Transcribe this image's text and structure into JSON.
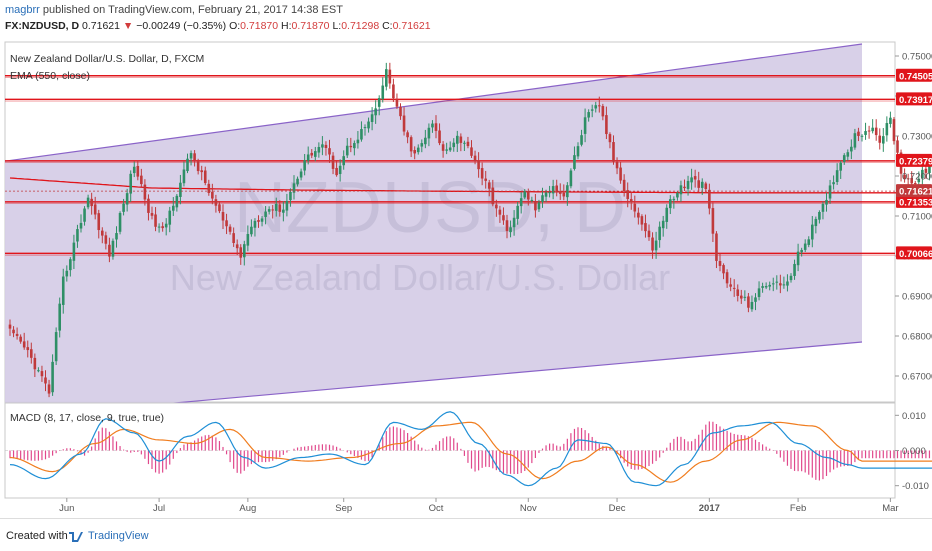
{
  "header": {
    "author": "magbrr",
    "published_text": "published on TradingView.com, February 21, 2017 14:38 EST",
    "symbol": "FX:NZDUSD, D",
    "last": "0.71621",
    "change": "−0.00249 (−0.35%)",
    "o_label": "O:",
    "o_value": "0.71870",
    "h_label": "H:",
    "h_value": "0.71870",
    "l_label": "L:",
    "l_value": "0.71298",
    "c_label": "C:",
    "c_value": "0.71621"
  },
  "footer": {
    "created_with": "Created with",
    "brand": "TradingView"
  },
  "colors": {
    "up": "#2e8f66",
    "down": "#c0393b",
    "channel_fill": "#d4cbe6",
    "channel_line": "#8a63c8",
    "hline": "#e0151b",
    "ema": "#e0151b",
    "macd": "#1f8fd6",
    "signal": "#f07d1f",
    "hist": "#e0498c"
  },
  "chart_data": [
    {
      "type": "candlestick",
      "title": "New Zealand Dollar/U.S. Dollar, D, FXCM",
      "indicator": "EMA (550, close)",
      "watermark_symbol": "NZDUSD, D",
      "watermark_name": "New Zealand Dollar/U.S. Dollar",
      "ylim": [
        0.6635,
        0.7535
      ],
      "y_ticks": [
        "0.75000",
        "0.74000",
        "0.73000",
        "0.72000",
        "0.71000",
        "0.70000",
        "0.69000",
        "0.68000",
        "0.67000"
      ],
      "x_ticks": [
        "Jun",
        "Jul",
        "Aug",
        "Sep",
        "Oct",
        "Nov",
        "Dec",
        "2017",
        "Feb",
        "Mar"
      ],
      "horizontal_levels": [
        "0.74505",
        "0.73917",
        "0.72379",
        "0.71353",
        "0.70066"
      ],
      "last_price_label": "0.71621",
      "ema_anchors": [
        [
          0,
          0.7195
        ],
        [
          40,
          0.717
        ],
        [
          80,
          0.7165
        ],
        [
          120,
          0.7162
        ],
        [
          160,
          0.716
        ],
        [
          200,
          0.7158
        ],
        [
          232,
          0.7158
        ]
      ],
      "channel": {
        "upper": [
          [
            0,
            0.7237
          ],
          [
            240,
            0.753
          ]
        ],
        "lower": [
          [
            0,
            0.6595
          ],
          [
            240,
            0.6785
          ]
        ]
      },
      "segments": [
        [
          0.682,
          0.676,
          6
        ],
        [
          0.676,
          0.666,
          6
        ],
        [
          0.666,
          0.694,
          4
        ],
        [
          0.694,
          0.715,
          7
        ],
        [
          0.715,
          0.7,
          6
        ],
        [
          0.7,
          0.723,
          7
        ],
        [
          0.723,
          0.709,
          5
        ],
        [
          0.709,
          0.706,
          3
        ],
        [
          0.706,
          0.726,
          8
        ],
        [
          0.726,
          0.718,
          4
        ],
        [
          0.718,
          0.705,
          7
        ],
        [
          0.705,
          0.7,
          3
        ],
        [
          0.7,
          0.708,
          3
        ],
        [
          0.708,
          0.712,
          5
        ],
        [
          0.712,
          0.712,
          4
        ],
        [
          0.712,
          0.724,
          6
        ],
        [
          0.724,
          0.728,
          5
        ],
        [
          0.728,
          0.721,
          4
        ],
        [
          0.721,
          0.727,
          3
        ],
        [
          0.727,
          0.731,
          4
        ],
        [
          0.731,
          0.736,
          4
        ],
        [
          0.736,
          0.746,
          3
        ],
        [
          0.746,
          0.731,
          5
        ],
        [
          0.731,
          0.725,
          3
        ],
        [
          0.725,
          0.733,
          5
        ],
        [
          0.733,
          0.726,
          3
        ],
        [
          0.726,
          0.73,
          4
        ],
        [
          0.73,
          0.726,
          4
        ],
        [
          0.726,
          0.716,
          5
        ],
        [
          0.716,
          0.706,
          5
        ],
        [
          0.706,
          0.716,
          5
        ],
        [
          0.716,
          0.712,
          3
        ],
        [
          0.712,
          0.718,
          5
        ],
        [
          0.718,
          0.715,
          3
        ],
        [
          0.715,
          0.734,
          6
        ],
        [
          0.734,
          0.738,
          4
        ],
        [
          0.738,
          0.724,
          4
        ],
        [
          0.724,
          0.715,
          4
        ],
        [
          0.715,
          0.708,
          4
        ],
        [
          0.708,
          0.702,
          3
        ],
        [
          0.702,
          0.714,
          5
        ],
        [
          0.714,
          0.717,
          3
        ],
        [
          0.717,
          0.719,
          3
        ],
        [
          0.719,
          0.717,
          4
        ],
        [
          0.717,
          0.699,
          3
        ],
        [
          0.699,
          0.692,
          4
        ],
        [
          0.692,
          0.688,
          5
        ],
        [
          0.688,
          0.692,
          4
        ],
        [
          0.692,
          0.694,
          3
        ],
        [
          0.694,
          0.692,
          3
        ],
        [
          0.692,
          0.7,
          4
        ],
        [
          0.7,
          0.707,
          4
        ],
        [
          0.707,
          0.712,
          3
        ],
        [
          0.712,
          0.722,
          4
        ],
        [
          0.722,
          0.73,
          5
        ],
        [
          0.73,
          0.732,
          4
        ],
        [
          0.732,
          0.729,
          3
        ],
        [
          0.729,
          0.734,
          3
        ],
        [
          0.734,
          0.721,
          3
        ],
        [
          0.721,
          0.718,
          4
        ],
        [
          0.718,
          0.723,
          4
        ],
        [
          0.723,
          0.7185,
          3
        ],
        [
          0.7185,
          0.7162,
          1
        ]
      ]
    },
    {
      "type": "line",
      "title": "MACD (8, 17, close, 9, true, true)",
      "ylim": [
        -0.0135,
        0.0135
      ],
      "y_ticks": [
        "0.010",
        "0.000",
        "-0.010"
      ],
      "macd_anchors": [
        [
          0,
          -0.004
        ],
        [
          10,
          -0.008
        ],
        [
          20,
          -0.001
        ],
        [
          27,
          0.009
        ],
        [
          35,
          0.005
        ],
        [
          42,
          -0.003
        ],
        [
          50,
          0.004
        ],
        [
          58,
          0.008
        ],
        [
          66,
          -0.002
        ],
        [
          72,
          -0.005
        ],
        [
          82,
          -0.002
        ],
        [
          90,
          -0.001
        ],
        [
          100,
          -0.004
        ],
        [
          108,
          0.008
        ],
        [
          116,
          0.006
        ],
        [
          124,
          0.011
        ],
        [
          132,
          0.002
        ],
        [
          140,
          -0.007
        ],
        [
          146,
          -0.01
        ],
        [
          154,
          -0.005
        ],
        [
          160,
          0.003
        ],
        [
          168,
          0.002
        ],
        [
          176,
          -0.009
        ],
        [
          182,
          -0.01
        ],
        [
          190,
          -0.004
        ],
        [
          198,
          0.005
        ],
        [
          206,
          0.007
        ],
        [
          214,
          0.008
        ],
        [
          222,
          0.002
        ],
        [
          230,
          -0.002
        ],
        [
          236,
          -0.004
        ],
        [
          240,
          -0.005
        ]
      ],
      "signal_anchors": [
        [
          0,
          -0.002
        ],
        [
          12,
          -0.006
        ],
        [
          24,
          0.002
        ],
        [
          32,
          0.006
        ],
        [
          42,
          0.003
        ],
        [
          52,
          0.002
        ],
        [
          62,
          0.006
        ],
        [
          72,
          -0.002
        ],
        [
          84,
          -0.003
        ],
        [
          96,
          -0.002
        ],
        [
          110,
          0.002
        ],
        [
          120,
          0.007
        ],
        [
          130,
          0.008
        ],
        [
          140,
          -0.001
        ],
        [
          150,
          -0.008
        ],
        [
          160,
          -0.003
        ],
        [
          168,
          0.001
        ],
        [
          176,
          -0.004
        ],
        [
          186,
          -0.009
        ],
        [
          196,
          -0.003
        ],
        [
          206,
          0.003
        ],
        [
          216,
          0.008
        ],
        [
          226,
          0.007
        ],
        [
          236,
          0.0
        ],
        [
          240,
          -0.003
        ]
      ]
    }
  ]
}
